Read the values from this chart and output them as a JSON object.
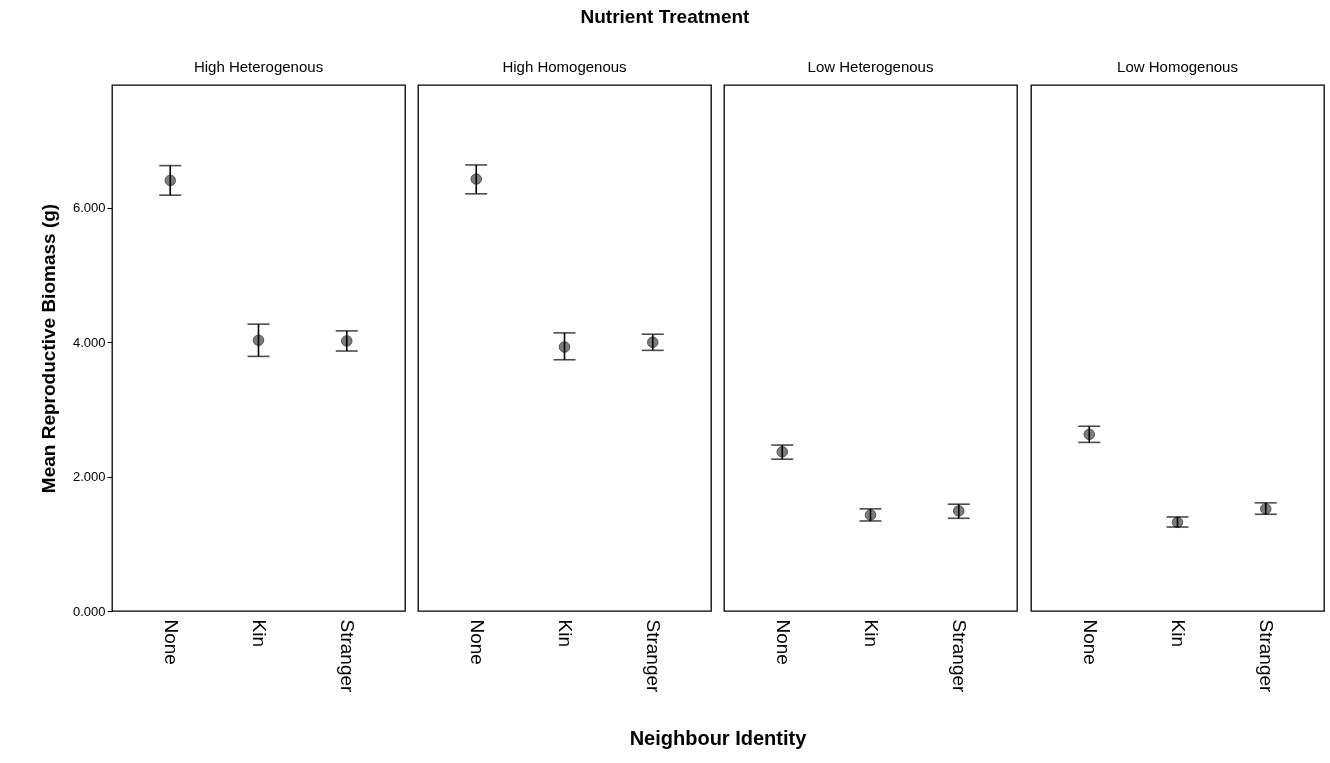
{
  "chart_data": [
    {
      "type": "scatter",
      "title": "High Heterogenous",
      "annotations": [
        "Nutrient Treatment",
        "Neighbour Identity"
      ],
      "ylabel": "Mean Reproductive Biomass (g)",
      "categories": [
        "None",
        "Kin",
        "Stranger"
      ],
      "series": [
        {
          "color": "#666666",
          "values": [
            6.41,
            4.03,
            4.02
          ],
          "errors": [
            [
              6.19,
              6.63
            ],
            [
              3.79,
              4.27
            ],
            [
              3.87,
              4.17
            ]
          ]
        }
      ],
      "ylim": [
        0,
        7.83
      ],
      "yticks": [
        {
          "value": 0,
          "label": "0.000"
        },
        {
          "value": 2,
          "label": "2.000"
        },
        {
          "value": 4,
          "label": "4.000"
        },
        {
          "value": 6,
          "label": "6.000"
        }
      ],
      "grid": false,
      "marker": "circle"
    },
    {
      "type": "scatter",
      "title": "High Homogenous",
      "categories": [
        "None",
        "Kin",
        "Stranger"
      ],
      "series": [
        {
          "color": "#666666",
          "values": [
            6.43,
            3.93,
            4.0
          ],
          "errors": [
            [
              6.21,
              6.64
            ],
            [
              3.74,
              4.14
            ],
            [
              3.88,
              4.12
            ]
          ]
        }
      ],
      "ylim": [
        0,
        7.83
      ],
      "tick_labels": "x",
      "grid": false,
      "marker": "circle"
    },
    {
      "type": "scatter",
      "title": "Low Heterogenous",
      "categories": [
        "None",
        "Kin",
        "Stranger"
      ],
      "series": [
        {
          "color": "#666666",
          "values": [
            2.37,
            1.43,
            1.49
          ],
          "errors": [
            [
              2.26,
              2.47
            ],
            [
              1.34,
              1.52
            ],
            [
              1.38,
              1.59
            ]
          ]
        }
      ],
      "ylim": [
        0,
        7.83
      ],
      "tick_labels": "x",
      "grid": false,
      "marker": "circle"
    },
    {
      "type": "scatter",
      "title": "Low Homogenous",
      "categories": [
        "None",
        "Kin",
        "Stranger"
      ],
      "series": [
        {
          "color": "#666666",
          "values": [
            2.63,
            1.32,
            1.52
          ],
          "errors": [
            [
              2.51,
              2.75
            ],
            [
              1.25,
              1.4
            ],
            [
              1.44,
              1.61
            ]
          ]
        }
      ],
      "ylim": [
        0,
        7.83
      ],
      "tick_labels": "x",
      "grid": false,
      "marker": "circle"
    }
  ]
}
